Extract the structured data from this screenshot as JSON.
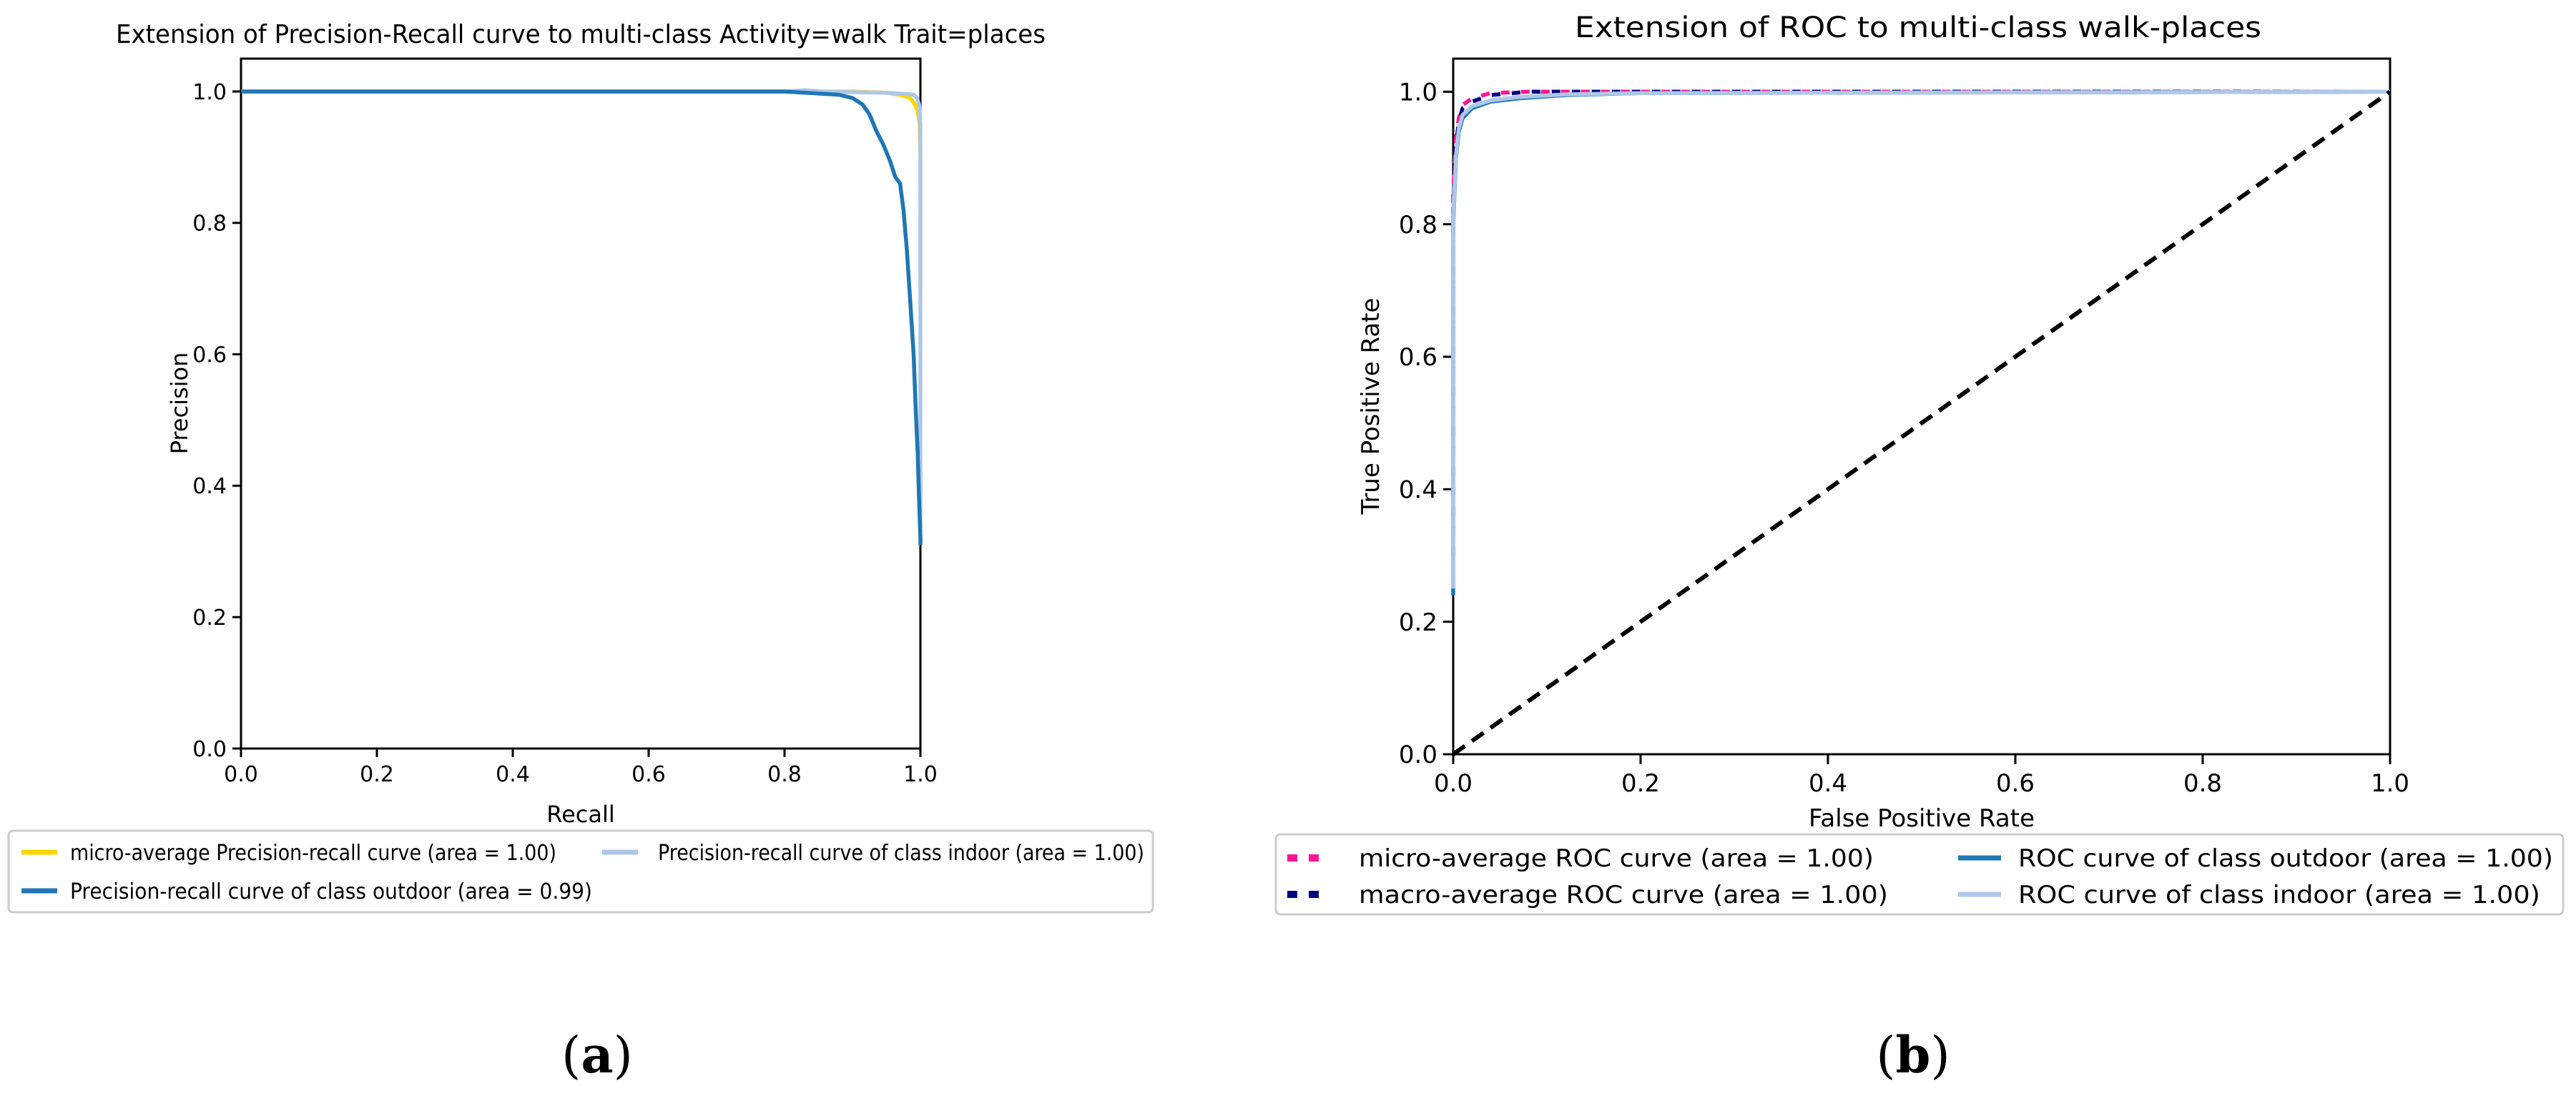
{
  "charts": [
    {
      "id": "a",
      "caption_letter": "a",
      "chart_data": {
        "type": "line",
        "title": "Extension of Precision-Recall curve to multi-class Activity=walk Trait=places",
        "xlabel": "Recall",
        "ylabel": "Precision",
        "xlim": [
          0.0,
          1.0
        ],
        "ylim": [
          0.0,
          1.05
        ],
        "xticks": [
          0.0,
          0.2,
          0.4,
          0.6,
          0.8,
          1.0
        ],
        "xtick_labels": [
          "0.0",
          "0.2",
          "0.4",
          "0.6",
          "0.8",
          "1.0"
        ],
        "yticks": [
          0.0,
          0.2,
          0.4,
          0.6,
          0.8,
          1.0
        ],
        "ytick_labels": [
          "0.0",
          "0.2",
          "0.4",
          "0.6",
          "0.8",
          "1.0"
        ],
        "grid": false,
        "legend_position": "below",
        "series": [
          {
            "name": "micro-average Precision-recall curve (area = 1.00)",
            "color": "#FFD700",
            "dash": "solid",
            "x": [
              0.0,
              0.8,
              0.9,
              0.95,
              0.97,
              0.985,
              0.992,
              0.996,
              0.999,
              1.0,
              1.0
            ],
            "y": [
              1.0,
              1.0,
              1.0,
              0.998,
              0.995,
              0.99,
              0.98,
              0.97,
              0.95,
              0.9,
              0.7
            ]
          },
          {
            "name": "Precision-recall curve of class indoor (area = 1.00)",
            "color": "#aec7e8",
            "dash": "solid",
            "x": [
              0.0,
              0.8,
              0.83,
              0.86,
              0.9,
              0.95,
              0.98,
              0.99,
              0.995,
              0.998,
              1.0,
              1.0,
              1.0
            ],
            "y": [
              1.0,
              1.0,
              1.002,
              1.0,
              0.999,
              0.998,
              0.996,
              0.995,
              0.99,
              0.98,
              0.95,
              0.6,
              0.33
            ]
          },
          {
            "name": "Precision-recall curve of class outdoor (area = 0.99)",
            "color": "#1f77b4",
            "dash": "solid",
            "x": [
              0.0,
              0.8,
              0.88,
              0.9,
              0.915,
              0.925,
              0.935,
              0.945,
              0.955,
              0.963,
              0.97,
              0.975,
              0.98,
              0.985,
              0.99,
              0.993,
              0.996,
              0.998,
              1.0,
              1.0
            ],
            "y": [
              1.0,
              1.0,
              0.995,
              0.99,
              0.98,
              0.965,
              0.94,
              0.92,
              0.895,
              0.87,
              0.86,
              0.82,
              0.76,
              0.68,
              0.6,
              0.52,
              0.45,
              0.38,
              0.32,
              0.31
            ]
          }
        ],
        "legend_order": [
          0,
          1,
          2
        ]
      }
    },
    {
      "id": "b",
      "caption_letter": "b",
      "chart_data": {
        "type": "line",
        "title": "Extension of ROC to multi-class walk-places",
        "xlabel": "False Positive Rate",
        "ylabel": "True Positive Rate",
        "xlim": [
          0.0,
          1.0
        ],
        "ylim": [
          0.0,
          1.05
        ],
        "xticks": [
          0.0,
          0.2,
          0.4,
          0.6,
          0.8,
          1.0
        ],
        "xtick_labels": [
          "0.0",
          "0.2",
          "0.4",
          "0.6",
          "0.8",
          "1.0"
        ],
        "yticks": [
          0.0,
          0.2,
          0.4,
          0.6,
          0.8,
          1.0
        ],
        "ytick_labels": [
          "0.0",
          "0.2",
          "0.4",
          "0.6",
          "0.8",
          "1.0"
        ],
        "grid": false,
        "legend_position": "below",
        "series": [
          {
            "name": "micro-average ROC curve (area = 1.00)",
            "color": "#FF1493",
            "dash": "dotted",
            "x": [
              0.0,
              0.0,
              0.003,
              0.006,
              0.01,
              0.02,
              0.04,
              0.08,
              0.2,
              1.0
            ],
            "y": [
              0.56,
              0.85,
              0.93,
              0.96,
              0.98,
              0.99,
              0.998,
              1.0,
              1.0,
              1.0
            ]
          },
          {
            "name": "macro-average ROC curve (area = 1.00)",
            "color": "#000080",
            "dash": "dotted",
            "x": [
              0.0,
              0.0,
              0.003,
              0.006,
              0.01,
              0.02,
              0.04,
              0.08,
              0.2,
              1.0
            ],
            "y": [
              0.3,
              0.82,
              0.92,
              0.955,
              0.975,
              0.985,
              0.995,
              1.0,
              1.0,
              1.0
            ]
          },
          {
            "name": "ROC curve of class outdoor (area = 1.00)",
            "color": "#1f77b4",
            "dash": "solid",
            "x": [
              0.0,
              0.0,
              0.003,
              0.006,
              0.01,
              0.02,
              0.04,
              0.07,
              0.12,
              0.2,
              1.0
            ],
            "y": [
              0.24,
              0.8,
              0.9,
              0.94,
              0.96,
              0.975,
              0.985,
              0.99,
              0.995,
              0.998,
              1.0
            ]
          },
          {
            "name": "ROC curve of class indoor (area = 1.00)",
            "color": "#aec7e8",
            "dash": "solid",
            "x": [
              0.0,
              0.0,
              0.003,
              0.006,
              0.01,
              0.02,
              0.04,
              0.07,
              0.12,
              0.2,
              1.0
            ],
            "y": [
              0.25,
              0.81,
              0.905,
              0.945,
              0.965,
              0.978,
              0.987,
              0.992,
              0.996,
              0.998,
              1.0
            ]
          },
          {
            "name": "",
            "color": "#000000",
            "dash": "dashed",
            "x": [
              0.0,
              1.0
            ],
            "y": [
              0.0,
              1.0
            ]
          }
        ],
        "legend_order": [
          0,
          2,
          1,
          3
        ]
      }
    }
  ]
}
